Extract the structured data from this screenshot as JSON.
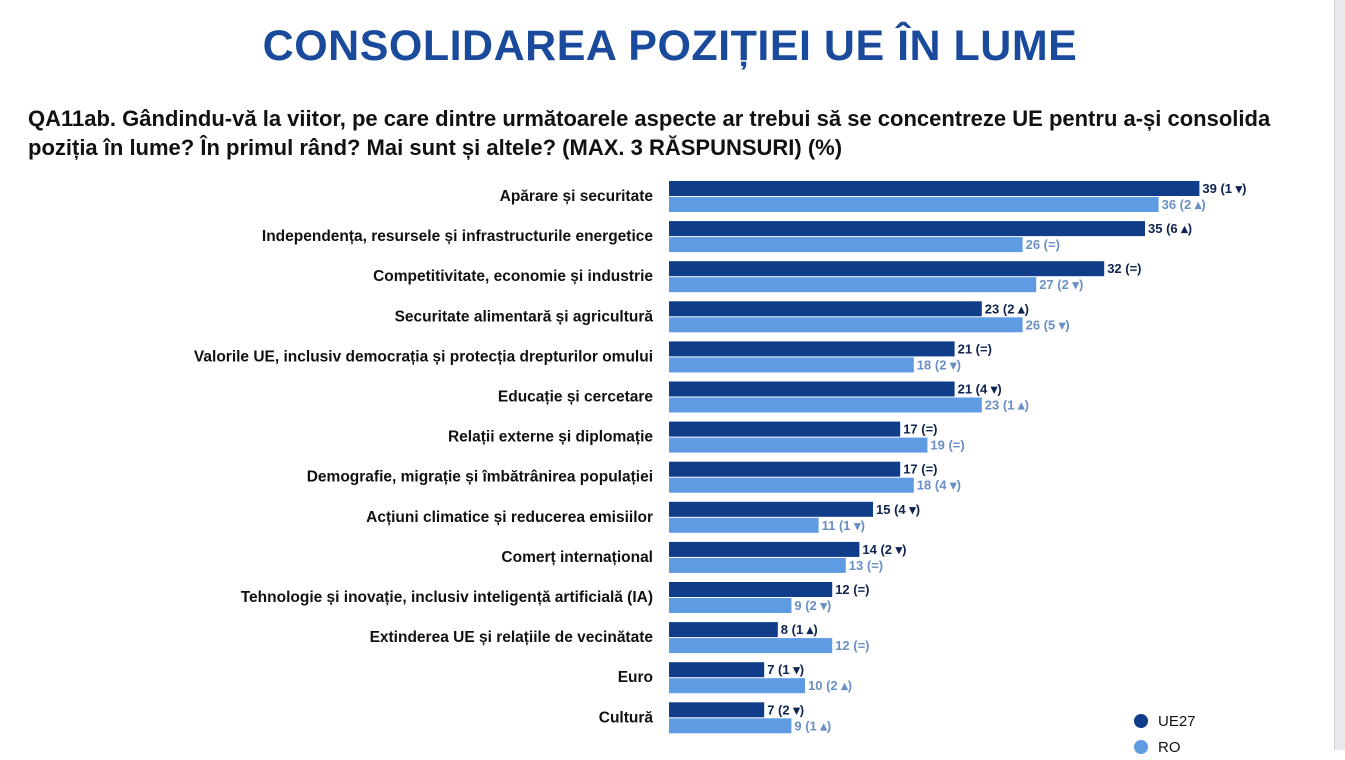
{
  "title": "CONSOLIDAREA POZIȚIEI UE ÎN LUME",
  "question": "QA11ab. Gândindu-vă la viitor, pe care dintre următoarele aspecte ar trebui să se concentreze UE pentru a-și consolida poziția în lume? În primul rând? Mai sunt și altele? (MAX. 3 RĂSPUNSURI) (%)",
  "colors": {
    "ue27": "#0f3d8a",
    "ro": "#5e9be3",
    "ro_label": "#6a8fc4",
    "title": "#1a4a9c"
  },
  "chart_data": {
    "type": "bar",
    "orientation": "horizontal",
    "categories": [
      "Apărare și securitate",
      "Independența, resursele și infrastructurile energetice",
      "Competitivitate, economie și industrie",
      "Securitate alimentară și agricultură",
      "Valorile UE, inclusiv democrația și protecția drepturilor omului",
      "Educație și cercetare",
      "Relații externe și diplomație",
      "Demografie, migrație și îmbătrânirea populației",
      "Acțiuni climatice și reducerea emisiilor",
      "Comerț internațional",
      "Tehnologie și inovație, inclusiv inteligență artificială (IA)",
      "Extinderea UE și relațiile de vecinătate",
      "Euro",
      "Cultură"
    ],
    "series": [
      {
        "name": "UE27",
        "values": [
          39,
          35,
          32,
          23,
          21,
          21,
          17,
          17,
          15,
          14,
          12,
          8,
          7,
          7
        ],
        "labels": [
          "39 (1 ▾)",
          "35 (6 ▴)",
          "32 (=)",
          "23 (2 ▴)",
          "21 (=)",
          "21 (4 ▾)",
          "17 (=)",
          "17 (=)",
          "15 (4 ▾)",
          "14 (2 ▾)",
          "12 (=)",
          "8 (1 ▴)",
          "7 (1 ▾)",
          "7 (2 ▾)"
        ]
      },
      {
        "name": "RO",
        "values": [
          36,
          26,
          27,
          26,
          18,
          23,
          19,
          18,
          11,
          13,
          9,
          12,
          10,
          9
        ],
        "labels": [
          "36 (2 ▴)",
          "26 (=)",
          "27 (2 ▾)",
          "26 (5 ▾)",
          "18 (2 ▾)",
          "23 (1 ▴)",
          "19 (=)",
          "18 (4 ▾)",
          "11 (1 ▾)",
          "13 (=)",
          "9 (2 ▾)",
          "12 (=)",
          "10 (2 ▴)",
          "9 (1 ▴)"
        ]
      }
    ],
    "xlim": [
      0,
      39
    ],
    "grid": false,
    "legend_position": "bottom-right"
  },
  "legend": {
    "ue27": "UE27",
    "ro": "RO"
  }
}
